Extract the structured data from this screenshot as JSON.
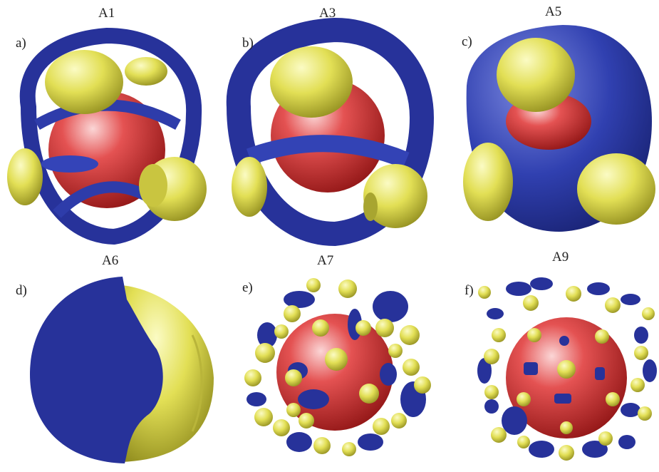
{
  "panels": [
    {
      "title": "A1",
      "label": "a)"
    },
    {
      "title": "A3",
      "label": "b)"
    },
    {
      "title": "A5",
      "label": "c)"
    },
    {
      "title": "A6",
      "label": "d)"
    },
    {
      "title": "A7",
      "label": "e)"
    },
    {
      "title": "A9",
      "label": "f)"
    }
  ],
  "colors": {
    "blue": "#27329a",
    "yellow": "#e3e05a",
    "red": "#d33a3a",
    "background": "#ffffff"
  }
}
